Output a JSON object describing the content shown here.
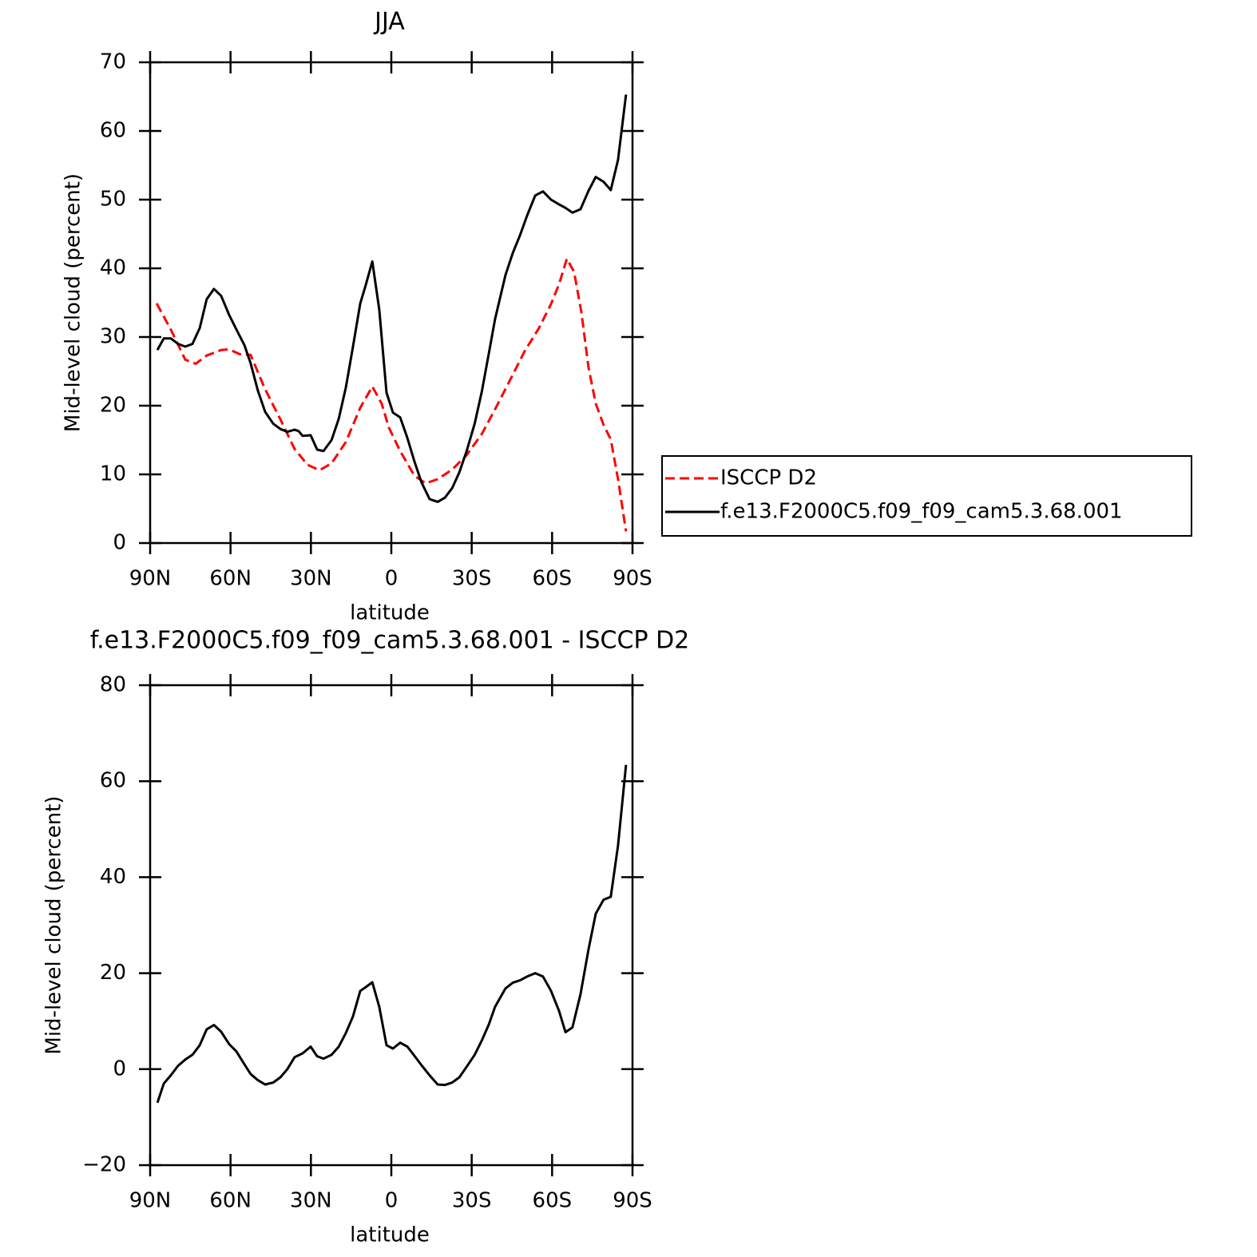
{
  "chart_data": [
    {
      "type": "line",
      "title": "JJA",
      "xlabel": "latitude",
      "ylabel": "Mid-level cloud (percent)",
      "xlim": [
        90,
        -90
      ],
      "xticks": [
        {
          "value": 90,
          "label": "90N"
        },
        {
          "value": 60,
          "label": "60N"
        },
        {
          "value": 30,
          "label": "30N"
        },
        0,
        {
          "value": -30,
          "label": "30S"
        },
        {
          "value": -60,
          "label": "60S"
        },
        {
          "value": -90,
          "label": "90S"
        }
      ],
      "ylim": [
        0,
        70
      ],
      "yticks": [
        0,
        10,
        20,
        30,
        40,
        50,
        60,
        70
      ],
      "legend": "right",
      "series": [
        {
          "name": "ISCCP D2",
          "color": "#ff0000",
          "dash": "dashed",
          "x": [
            87.6,
            82.3,
            76.9,
            73.0,
            68.9,
            63.5,
            60.5,
            56.6,
            52.5,
            47.1,
            41.4,
            36.1,
            31.3,
            26.8,
            22.3,
            17.0,
            11.6,
            7.1,
            3.6,
            0.9,
            -3.3,
            -8.6,
            -12.8,
            -17.3,
            -22.7,
            -28.1,
            -33.8,
            -39.0,
            -44.4,
            -49.7,
            -55.1,
            -59.6,
            -62.6,
            -65.5,
            -68.2,
            -70.9,
            -73.6,
            -76.3,
            -79.2,
            -81.9,
            -84.6,
            -87.6
          ],
          "values": [
            34.9,
            31.1,
            26.7,
            26.1,
            27.3,
            28.1,
            28.2,
            27.5,
            27.4,
            22.4,
            18.0,
            13.7,
            11.4,
            10.6,
            11.6,
            14.7,
            19.7,
            22.8,
            20.3,
            16.8,
            13.4,
            9.8,
            8.7,
            9.3,
            10.7,
            12.8,
            15.9,
            19.7,
            23.8,
            27.9,
            31.3,
            34.8,
            37.7,
            41.4,
            39.5,
            33.7,
            25.5,
            20.3,
            17.2,
            15.1,
            9.3,
            1.7
          ]
        },
        {
          "name": "f.e13.F2000C5.f09_f09_cam5.3.68.001",
          "color": "#000000",
          "dash": "solid",
          "x": [
            87.3,
            84.9,
            82.3,
            79.6,
            76.9,
            74.2,
            71.5,
            68.9,
            66.2,
            63.5,
            60.5,
            57.8,
            54.8,
            52.5,
            49.8,
            47.1,
            44.1,
            41.4,
            38.8,
            36.1,
            34.6,
            33.1,
            30.1,
            27.7,
            25.3,
            22.3,
            19.6,
            17.0,
            14.3,
            11.6,
            9.5,
            7.1,
            4.5,
            1.8,
            -0.6,
            -3.3,
            -6.0,
            -8.6,
            -11.3,
            -14.3,
            -17.3,
            -20.0,
            -22.7,
            -25.4,
            -28.1,
            -31.1,
            -33.8,
            -36.4,
            -38.7,
            -42.6,
            -45.3,
            -48.0,
            -50.7,
            -53.7,
            -56.6,
            -59.6,
            -62.6,
            -65.0,
            -67.6,
            -70.6,
            -73.6,
            -76.3,
            -79.2,
            -81.9,
            -84.6,
            -87.6
          ],
          "values": [
            28.1,
            29.8,
            29.8,
            29.0,
            28.6,
            29.0,
            31.3,
            35.5,
            37.0,
            36.0,
            33.2,
            31.1,
            28.8,
            26.2,
            22.2,
            19.1,
            17.4,
            16.6,
            16.2,
            16.5,
            16.3,
            15.6,
            15.7,
            13.6,
            13.4,
            15.0,
            18.1,
            22.6,
            28.6,
            34.9,
            37.6,
            41.0,
            34.0,
            21.9,
            19.0,
            18.3,
            15.3,
            11.9,
            8.8,
            6.4,
            6.0,
            6.6,
            8.0,
            10.3,
            13.4,
            17.4,
            22.1,
            27.6,
            32.6,
            39.0,
            42.2,
            44.8,
            47.7,
            50.6,
            51.2,
            50.0,
            49.3,
            48.8,
            48.1,
            48.6,
            51.3,
            53.3,
            52.6,
            51.4,
            55.8,
            65.3
          ]
        }
      ]
    },
    {
      "type": "line",
      "title": "f.e13.F2000C5.f09_f09_cam5.3.68.001 - ISCCP D2",
      "xlabel": "latitude",
      "ylabel": "Mid-level cloud (percent)",
      "xlim": [
        90,
        -90
      ],
      "xticks": [
        {
          "value": 90,
          "label": "90N"
        },
        {
          "value": 60,
          "label": "60N"
        },
        {
          "value": 30,
          "label": "30N"
        },
        0,
        {
          "value": -30,
          "label": "30S"
        },
        {
          "value": -60,
          "label": "60S"
        },
        {
          "value": -90,
          "label": "90S"
        }
      ],
      "ylim": [
        -20,
        80
      ],
      "yticks": [
        {
          "value": -20,
          "label": "−20"
        },
        0,
        20,
        40,
        60,
        80
      ],
      "series": [
        {
          "color": "#000000",
          "dash": "solid",
          "x": [
            87.3,
            84.9,
            82.3,
            79.6,
            76.9,
            74.2,
            71.5,
            68.9,
            66.2,
            63.5,
            60.5,
            57.8,
            54.8,
            52.5,
            49.8,
            47.1,
            44.1,
            41.4,
            38.8,
            36.1,
            33.1,
            30.1,
            27.7,
            25.3,
            22.3,
            19.6,
            17.0,
            14.3,
            11.6,
            9.5,
            7.1,
            4.5,
            1.8,
            -0.6,
            -3.3,
            -6.0,
            -8.6,
            -11.3,
            -14.3,
            -17.3,
            -20.0,
            -22.7,
            -25.4,
            -28.1,
            -31.1,
            -33.8,
            -36.4,
            -38.7,
            -42.6,
            -45.3,
            -48.0,
            -50.7,
            -53.7,
            -56.6,
            -59.6,
            -62.6,
            -65.0,
            -67.6,
            -70.6,
            -73.6,
            -76.3,
            -79.2,
            -81.9,
            -84.6,
            -87.6
          ],
          "values": [
            -7.0,
            -3.0,
            -1.3,
            0.7,
            2.0,
            3.0,
            5.0,
            8.3,
            9.2,
            7.8,
            5.2,
            3.7,
            1.0,
            -1.0,
            -2.3,
            -3.2,
            -2.8,
            -1.7,
            0.0,
            2.5,
            3.3,
            4.7,
            2.7,
            2.2,
            3.0,
            4.7,
            7.5,
            11.0,
            16.3,
            17.1,
            18.1,
            13.0,
            5.0,
            4.3,
            5.5,
            4.7,
            2.8,
            0.8,
            -1.3,
            -3.2,
            -3.3,
            -2.8,
            -1.7,
            0.5,
            3.0,
            6.0,
            9.3,
            13.0,
            16.8,
            18.0,
            18.5,
            19.3,
            20.0,
            19.3,
            16.3,
            12.1,
            7.7,
            8.7,
            15.6,
            25.0,
            32.4,
            35.3,
            35.9,
            46.6,
            63.4
          ]
        }
      ]
    }
  ]
}
